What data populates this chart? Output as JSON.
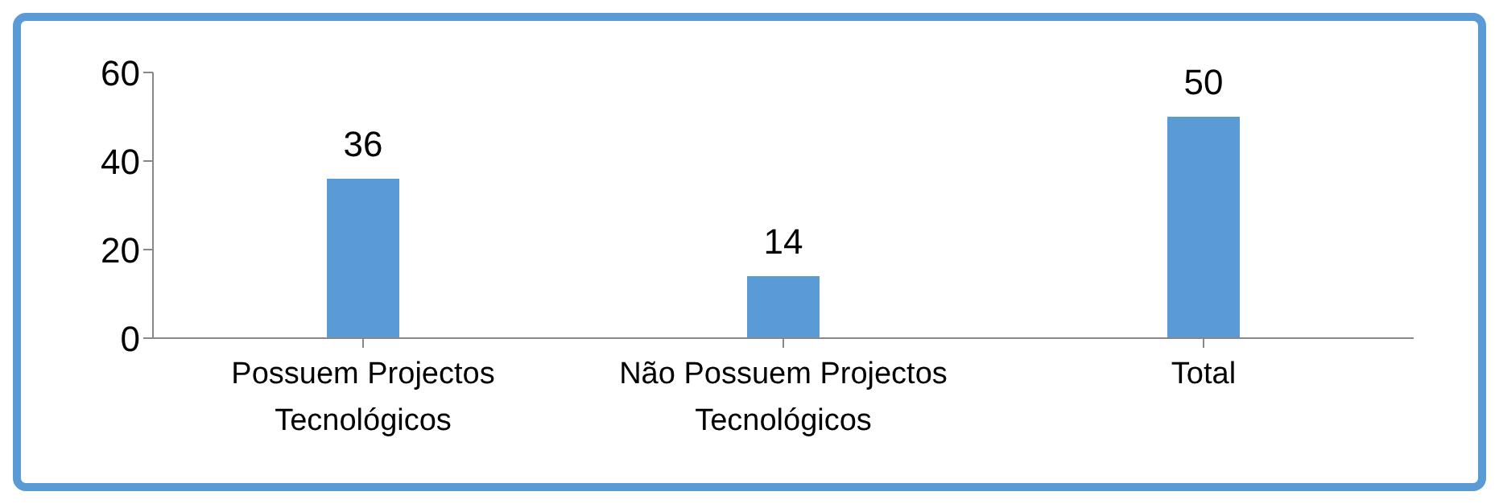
{
  "chart_data": {
    "type": "bar",
    "categories": [
      "Possuem Projectos Tecnológicos",
      "Não Possuem Projectos Tecnológicos",
      "Total"
    ],
    "values": [
      36,
      14,
      50
    ],
    "color": "#5b9bd5",
    "ylim": [
      0,
      60
    ],
    "yticks": [
      0,
      20,
      40,
      60
    ],
    "data_labels": true
  }
}
